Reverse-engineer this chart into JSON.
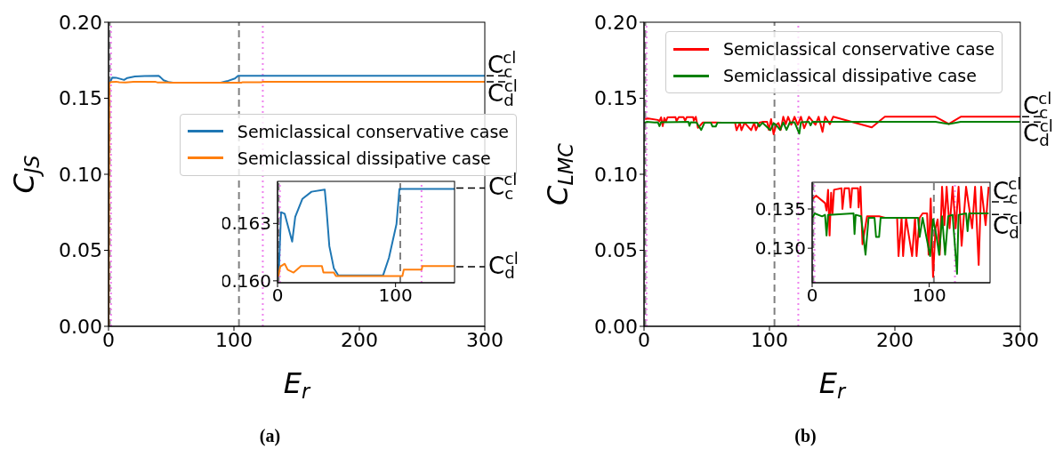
{
  "chart_data": [
    {
      "type": "line",
      "title": "(a)",
      "xlabel": "E$_{r}$",
      "ylabel": "C$_{JS}$",
      "xlim": [
        0,
        300
      ],
      "xticks": [
        0,
        100,
        200,
        300
      ],
      "ylim": [
        0,
        0.2
      ],
      "yticks": [
        {
          "value": 0,
          "label": "0.00"
        },
        {
          "value": 0.05,
          "label": "0.05"
        },
        {
          "value": 0.1,
          "label": "0.10"
        },
        {
          "value": 0.15,
          "label": "0.15"
        },
        {
          "value": 0.2,
          "label": "0.20"
        }
      ],
      "legend": "right",
      "series": [
        {
          "name": "Semiclassical conservative case",
          "color": "#1f77b4",
          "x": [
            1,
            3,
            6,
            12.4,
            15,
            21,
            28.8,
            40,
            41.4,
            43.9,
            47.7,
            51.5,
            89.4,
            94.4,
            100.8,
            103.3,
            300
          ],
          "values": [
            0.16028,
            0.16359,
            0.16351,
            0.16205,
            0.16335,
            0.16428,
            0.16466,
            0.16477,
            0.16383,
            0.16181,
            0.16066,
            0.16028,
            0.16028,
            0.1612,
            0.16297,
            0.16481,
            0.16481
          ]
        },
        {
          "name": "Semiclassical dissipative case",
          "color": "#ff7f0e",
          "x": [
            0,
            0.6,
            2.3,
            6.1,
            8.6,
            13.6,
            19.9,
            37.6,
            38.9,
            47.7,
            49.5,
            105.8,
            107,
            122.2,
            122.7,
            300
          ],
          "values": [
            0,
            0.16023,
            0.16074,
            0.16089,
            0.16058,
            0.16043,
            0.16077,
            0.16077,
            0.16043,
            0.16043,
            0.16025,
            0.16025,
            0.16059,
            0.16059,
            0.16077,
            0.16077
          ]
        }
      ],
      "ref_lines": [
        {
          "axis": "x",
          "value": 1,
          "color": "#808080",
          "line_style": "dashed"
        },
        {
          "axis": "x",
          "value": 104,
          "color": "#808080",
          "line_style": "dashed"
        },
        {
          "axis": "x",
          "value": 2,
          "color": "#ee82ee",
          "line_style": "dotted"
        },
        {
          "axis": "x",
          "value": 123,
          "color": "#ee82ee",
          "line_style": "dotted"
        },
        {
          "axis": "y",
          "value": 0.16481,
          "label": "C$_{c}$$^{cl}$",
          "color": "#000000",
          "line_style": "dashed"
        },
        {
          "axis": "y",
          "value": 0.16077,
          "label": "C$_{d}$$^{cl}$",
          "color": "#000000",
          "line_style": "dashed"
        }
      ]
    },
    {
      "type": "line",
      "xlim": [
        0,
        150
      ],
      "xticks": [
        0,
        100
      ],
      "ylim": [
        0.1599,
        0.1652
      ],
      "yticks": [
        {
          "value": 0.16,
          "label": "0.160"
        },
        {
          "value": 0.163,
          "label": "0.163"
        }
      ],
      "series": [
        {
          "color": "#1f77b4",
          "x": [
            1,
            3,
            6,
            12.4,
            15,
            21,
            28.8,
            40,
            41.4,
            43.9,
            47.7,
            51.5,
            89.4,
            94.4,
            100.8,
            103.3,
            150
          ],
          "values": [
            0.16028,
            0.16359,
            0.16351,
            0.16205,
            0.16335,
            0.16428,
            0.16466,
            0.16477,
            0.16383,
            0.16181,
            0.16066,
            0.16028,
            0.16028,
            0.1612,
            0.16297,
            0.16481,
            0.16481
          ]
        },
        {
          "color": "#ff7f0e",
          "x": [
            0.6,
            2.3,
            6.1,
            8.6,
            13.6,
            19.9,
            37.6,
            38.9,
            47.7,
            49.5,
            105.8,
            107,
            122.2,
            122.7,
            150
          ],
          "values": [
            0.16023,
            0.16074,
            0.16089,
            0.16058,
            0.16043,
            0.16077,
            0.16077,
            0.16043,
            0.16043,
            0.16025,
            0.16025,
            0.16059,
            0.16059,
            0.16077,
            0.16077
          ]
        }
      ],
      "ref_lines": [
        {
          "axis": "x",
          "value": 1,
          "color": "#808080",
          "line_style": "dashed"
        },
        {
          "axis": "x",
          "value": 104,
          "color": "#808080",
          "line_style": "dashed"
        },
        {
          "axis": "x",
          "value": 2,
          "color": "#ee82ee",
          "line_style": "dotted"
        },
        {
          "axis": "x",
          "value": 122,
          "color": "#ee82ee",
          "line_style": "dotted"
        },
        {
          "axis": "y",
          "value": 0.16485,
          "label": "C$_{c}$$^{cl}$",
          "color": "#000000",
          "line_style": "dashed"
        },
        {
          "axis": "y",
          "value": 0.16074,
          "label": "C$_{d}$$^{cl}$",
          "color": "#000000",
          "line_style": "dashed"
        }
      ]
    },
    {
      "type": "line",
      "title": "(b)",
      "xlabel": "E$_{r}$",
      "ylabel": "C$_{LMC}$",
      "xlim": [
        0,
        300
      ],
      "xticks": [
        0,
        100,
        200,
        300
      ],
      "ylim": [
        0,
        0.2
      ],
      "yticks": [
        {
          "value": 0,
          "label": "0.00"
        },
        {
          "value": 0.05,
          "label": "0.05"
        },
        {
          "value": 0.1,
          "label": "0.10"
        },
        {
          "value": 0.15,
          "label": "0.15"
        },
        {
          "value": 0.2,
          "label": "0.20"
        }
      ],
      "legend": "top",
      "series": [
        {
          "name": "Semiclassical conservative case",
          "color": "#ff0000",
          "x": [
            0.8,
            3.3,
            11,
            12.3,
            13.6,
            14.9,
            16.2,
            17.4,
            18.7,
            25.1,
            25.9,
            27.7,
            31.5,
            32.8,
            34.1,
            39.2,
            39.7,
            41.3,
            43,
            46.9,
            57.2,
            62.3,
            72.6,
            73.8,
            76.4,
            77.7,
            80.2,
            85.4,
            87.9,
            89.2,
            91.8,
            94.4,
            98.2,
            99.5,
            101.3,
            103.3,
            105.4,
            107.2,
            109,
            111,
            113,
            114.9,
            117.4,
            120,
            122.6,
            125.1,
            127.7,
            131.5,
            136.7,
            139.2,
            142.3,
            144.4,
            148.2,
            150.8,
            181.6,
            192,
            232.4,
            243,
            252.5,
            300
          ],
          "values": [
            0.13632,
            0.13669,
            0.13575,
            0.13481,
            0.13745,
            0.13162,
            0.13706,
            0.13444,
            0.13745,
            0.13763,
            0.135,
            0.13763,
            0.13763,
            0.13519,
            0.13763,
            0.13763,
            0.13519,
            0.13782,
            0.13049,
            0.13406,
            0.13406,
            0.13387,
            0.13387,
            0.12899,
            0.13387,
            0.12899,
            0.13387,
            0.12899,
            0.13387,
            0.12899,
            0.13387,
            0.13444,
            0.13444,
            0.12917,
            0.13632,
            0.12635,
            0.13255,
            0.13368,
            0.12917,
            0.13782,
            0.13294,
            0.13782,
            0.13255,
            0.13782,
            0.13255,
            0.13782,
            0.1303,
            0.13782,
            0.13255,
            0.13782,
            0.12786,
            0.13782,
            0.13294,
            0.13782,
            0.1308,
            0.13782,
            0.13782,
            0.1331,
            0.13782,
            0.13782
          ]
        },
        {
          "name": "Semiclassical dissipative case",
          "color": "#008000",
          "x": [
            0.3,
            2.1,
            8.5,
            11,
            12.3,
            13.6,
            35.4,
            36.2,
            37.2,
            41.8,
            45.6,
            48.2,
            53.3,
            54.6,
            57.2,
            58.5,
            90.5,
            91.8,
            94.4,
            100.8,
            103.3,
            105.9,
            108.5,
            111,
            113.6,
            116.2,
            120,
            123.8,
            125.1,
            131.5,
            132.8,
            134.1,
            150.8,
            232.4,
            243,
            252.5,
            300
          ],
          "values": [
            0.13387,
            0.13444,
            0.13406,
            0.13425,
            0.13162,
            0.13425,
            0.13444,
            0.13181,
            0.13425,
            0.13406,
            0.12917,
            0.13387,
            0.13387,
            0.13143,
            0.13143,
            0.13387,
            0.13387,
            0.13143,
            0.13387,
            0.12899,
            0.13368,
            0.13181,
            0.12917,
            0.13406,
            0.12917,
            0.13406,
            0.13425,
            0.12673,
            0.13425,
            0.13444,
            0.13218,
            0.13444,
            0.13444,
            0.13444,
            0.1331,
            0.13444,
            0.13444
          ]
        }
      ],
      "ref_lines": [
        {
          "axis": "x",
          "value": 1,
          "color": "#808080",
          "line_style": "dashed"
        },
        {
          "axis": "x",
          "value": 104,
          "color": "#808080",
          "line_style": "dashed"
        },
        {
          "axis": "x",
          "value": 2,
          "color": "#ee82ee",
          "line_style": "dotted"
        },
        {
          "axis": "x",
          "value": 123,
          "color": "#ee82ee",
          "line_style": "dotted"
        },
        {
          "axis": "y",
          "value": 0.1378,
          "label": "C$_{c}$$^{cl}$",
          "color": "#000000",
          "line_style": "dashed"
        },
        {
          "axis": "y",
          "value": 0.1344,
          "label": "C$_{d}$$^{cl}$",
          "color": "#000000",
          "line_style": "dashed"
        }
      ]
    },
    {
      "type": "line",
      "xlim": [
        0,
        152
      ],
      "xticks": [
        0,
        100
      ],
      "ylim": [
        0.1256,
        0.1384
      ],
      "yticks": [
        {
          "value": 0.13,
          "label": "0.130"
        },
        {
          "value": 0.135,
          "label": "0.135"
        }
      ],
      "series": [
        {
          "color": "#ff0000",
          "x": [
            0.8,
            3.3,
            11,
            12.3,
            13.6,
            14.9,
            16.2,
            17.4,
            18.7,
            25.1,
            25.9,
            27.7,
            31.5,
            32.8,
            34.1,
            39.2,
            39.7,
            41.3,
            43,
            46.9,
            57.2,
            62.3,
            72.6,
            73.8,
            76.4,
            77.7,
            80.2,
            85.4,
            87.9,
            89.2,
            91.8,
            94.4,
            98.2,
            99.5,
            101.3,
            103.3,
            105.4,
            107.2,
            109,
            111,
            113,
            114.9,
            117.4,
            120,
            122.6,
            125.1,
            127.7,
            131.5,
            136.7,
            139.2,
            142.3,
            144.4,
            148.2,
            150.8
          ],
          "values": [
            0.13632,
            0.13669,
            0.13575,
            0.13481,
            0.13745,
            0.13162,
            0.13706,
            0.13444,
            0.13745,
            0.13763,
            0.135,
            0.13763,
            0.13763,
            0.13519,
            0.13763,
            0.13763,
            0.13519,
            0.13782,
            0.13049,
            0.13406,
            0.13406,
            0.13387,
            0.13387,
            0.12899,
            0.13387,
            0.12899,
            0.13387,
            0.12899,
            0.13387,
            0.12899,
            0.13387,
            0.13444,
            0.13444,
            0.12917,
            0.13632,
            0.12635,
            0.13255,
            0.13368,
            0.12917,
            0.13782,
            0.13294,
            0.13782,
            0.13255,
            0.13782,
            0.13255,
            0.13782,
            0.1303,
            0.13782,
            0.13255,
            0.13782,
            0.12786,
            0.13782,
            0.13294,
            0.13782
          ]
        },
        {
          "color": "#008000",
          "x": [
            0.3,
            2.1,
            8.5,
            11,
            12.3,
            13.6,
            35.4,
            36.2,
            37.2,
            41.8,
            45.6,
            48.2,
            53.3,
            54.6,
            57.2,
            58.5,
            90.5,
            91.8,
            94.4,
            100.8,
            103.3,
            105.9,
            108.5,
            111,
            113.6,
            116.2,
            120,
            123.8,
            125.1,
            131.5,
            132.8,
            134.1,
            150.8
          ],
          "values": [
            0.13387,
            0.13444,
            0.13406,
            0.13425,
            0.13162,
            0.13425,
            0.13444,
            0.13181,
            0.13425,
            0.13406,
            0.12917,
            0.13387,
            0.13387,
            0.13143,
            0.13143,
            0.13387,
            0.13387,
            0.13143,
            0.13387,
            0.12899,
            0.13368,
            0.13181,
            0.12917,
            0.13406,
            0.12917,
            0.13406,
            0.13425,
            0.12673,
            0.13425,
            0.13444,
            0.13218,
            0.13444,
            0.13444
          ]
        }
      ],
      "ref_lines": [
        {
          "axis": "x",
          "value": 1,
          "color": "#808080",
          "line_style": "dashed"
        },
        {
          "axis": "x",
          "value": 104,
          "color": "#808080",
          "line_style": "dashed"
        },
        {
          "axis": "x",
          "value": 2,
          "color": "#ee82ee",
          "line_style": "dotted"
        },
        {
          "axis": "x",
          "value": 122,
          "color": "#ee82ee",
          "line_style": "dotted"
        },
        {
          "axis": "y",
          "value": 0.1359,
          "label": "C$_{c}$$^{cl}$",
          "color": "#000000",
          "line_style": "dashed"
        },
        {
          "axis": "y",
          "value": 0.1343,
          "label": "C$_{d}$$^{cl}$",
          "color": "#000000",
          "line_style": "dashed"
        }
      ]
    }
  ]
}
